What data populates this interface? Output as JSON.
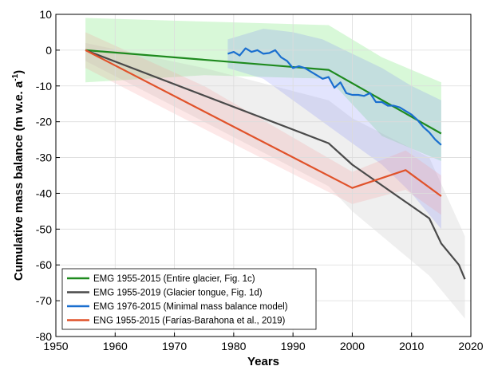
{
  "chart_data": {
    "type": "line",
    "xlabel": "Years",
    "ylabel": "Cumulative mass balance (m w.e. a",
    "ylabel_superscript": "-1",
    "ylabel_suffix": ")",
    "xlim": [
      1950,
      2020
    ],
    "ylim": [
      -80,
      10
    ],
    "xticks": [
      1950,
      1960,
      1970,
      1980,
      1990,
      2000,
      2010,
      2020
    ],
    "yticks": [
      10,
      0,
      -10,
      -20,
      -30,
      -40,
      -50,
      -60,
      -70,
      -80
    ],
    "grid": true,
    "legend_position": "lower-left",
    "series": [
      {
        "name": "EMG 1955-2015 (Entire glacier, Fig. 1c)",
        "color": "#1e8a1e",
        "band_color": "#4fe04f",
        "x": [
          1955,
          1996,
          2015
        ],
        "y": [
          0,
          -5.5,
          -23.3
        ],
        "band_x": [
          1955,
          1975,
          1996,
          2005,
          2015
        ],
        "band_upper": [
          9,
          8,
          7,
          -2,
          -9
        ],
        "band_lower": [
          -9,
          -7,
          -8,
          -24,
          -31
        ]
      },
      {
        "name": "EMG 1955-2019 (Glacier tongue, Fig. 1d)",
        "color": "#4a4a4a",
        "band_color": "#b4b4b4",
        "x": [
          1955,
          1996,
          2000,
          2013,
          2015,
          2018,
          2019
        ],
        "y": [
          0,
          -26,
          -32,
          -47,
          -54,
          -60,
          -64
        ],
        "band_x": [
          1955,
          1975,
          1996,
          2000,
          2013,
          2019
        ],
        "band_upper": [
          2,
          -5,
          -14,
          -19,
          -30,
          -52
        ],
        "band_lower": [
          -3,
          -20,
          -38,
          -45,
          -63,
          -75
        ]
      },
      {
        "name": "EMG 1976-2015 (Minimal mass balance model)",
        "color": "#1a6fcf",
        "band_color": "#7a86f5",
        "x": [
          1979,
          1980,
          1981,
          1982,
          1983,
          1984,
          1985,
          1986,
          1987,
          1988,
          1989,
          1990,
          1991,
          1992,
          1993,
          1994,
          1995,
          1996,
          1997,
          1998,
          1999,
          2000,
          2001,
          2002,
          2003,
          2004,
          2005,
          2006,
          2007,
          2008,
          2009,
          2010,
          2011,
          2012,
          2013,
          2014,
          2015
        ],
        "y": [
          -1,
          -0.5,
          -1.5,
          0.5,
          -0.5,
          0,
          -1,
          -0.8,
          0,
          -2,
          -3,
          -5,
          -4.5,
          -5,
          -6,
          -7,
          -8,
          -7.5,
          -10.5,
          -9,
          -12,
          -12.5,
          -12.5,
          -12.8,
          -12,
          -14.5,
          -14.5,
          -15.5,
          -15.5,
          -16,
          -17,
          -18,
          -19.5,
          -21.5,
          -23,
          -25,
          -26.5
        ],
        "band_x": [
          1979,
          1985,
          1990,
          1995,
          2000,
          2005,
          2010,
          2015
        ],
        "band_upper": [
          3,
          6,
          5,
          3,
          -1,
          -5,
          -10,
          -14
        ],
        "band_lower": [
          -5,
          -8,
          -14,
          -20,
          -26,
          -32,
          -40,
          -50
        ]
      },
      {
        "name": "ENG 1955-2015 (Farías-Barahona et al., 2019)",
        "color": "#e0522a",
        "band_color": "#f59595",
        "x": [
          1955,
          2000,
          2009,
          2015
        ],
        "y": [
          0,
          -38.5,
          -33.5,
          -40.8
        ],
        "band_x": [
          1955,
          1975,
          2000,
          2009,
          2015
        ],
        "band_upper": [
          5,
          -10,
          -34,
          -28,
          -35
        ],
        "band_lower": [
          -5,
          -22,
          -43,
          -39,
          -46
        ]
      }
    ]
  }
}
